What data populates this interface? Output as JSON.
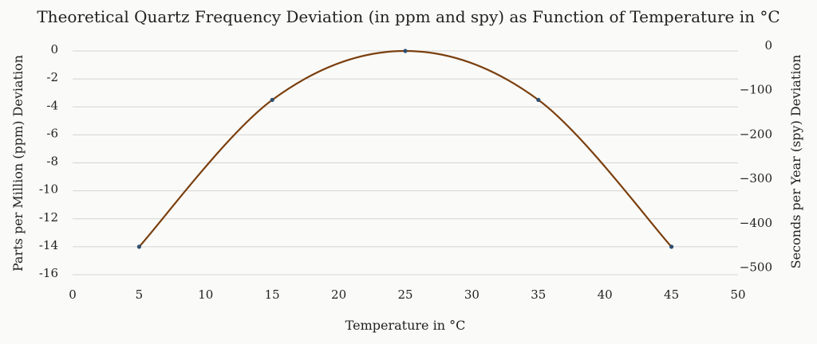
{
  "chart_data": {
    "type": "scatter",
    "title": "Theoretical Quartz Frequency Deviation (in ppm and spy) as Function of Temperature in °C",
    "xlabel": "Temperature in °C",
    "ylabel": "Parts per Million (ppm) Deviation",
    "y2label": "Seconds per Year (spy) Deviation",
    "xlim": [
      0,
      50
    ],
    "ylim": [
      -16,
      0
    ],
    "y2lim": [
      -504.6,
      0
    ],
    "x_ticks": [
      "0",
      "5",
      "10",
      "15",
      "20",
      "25",
      "30",
      "35",
      "40",
      "45",
      "50"
    ],
    "y_ticks": [
      "0",
      "-2",
      "-4",
      "-6",
      "-8",
      "-10",
      "-12",
      "-14",
      "-16"
    ],
    "y2_ticks": [
      "0",
      "−100",
      "−200",
      "−300",
      "−400",
      "−500"
    ],
    "grid": true,
    "line_color": "#7b3f0e",
    "marker_color": "#2f4f6f",
    "series": [
      {
        "x": [
          5,
          15,
          25,
          35,
          45
        ],
        "y": [
          -14,
          -3.5,
          0,
          -3.5,
          -14
        ]
      }
    ]
  }
}
